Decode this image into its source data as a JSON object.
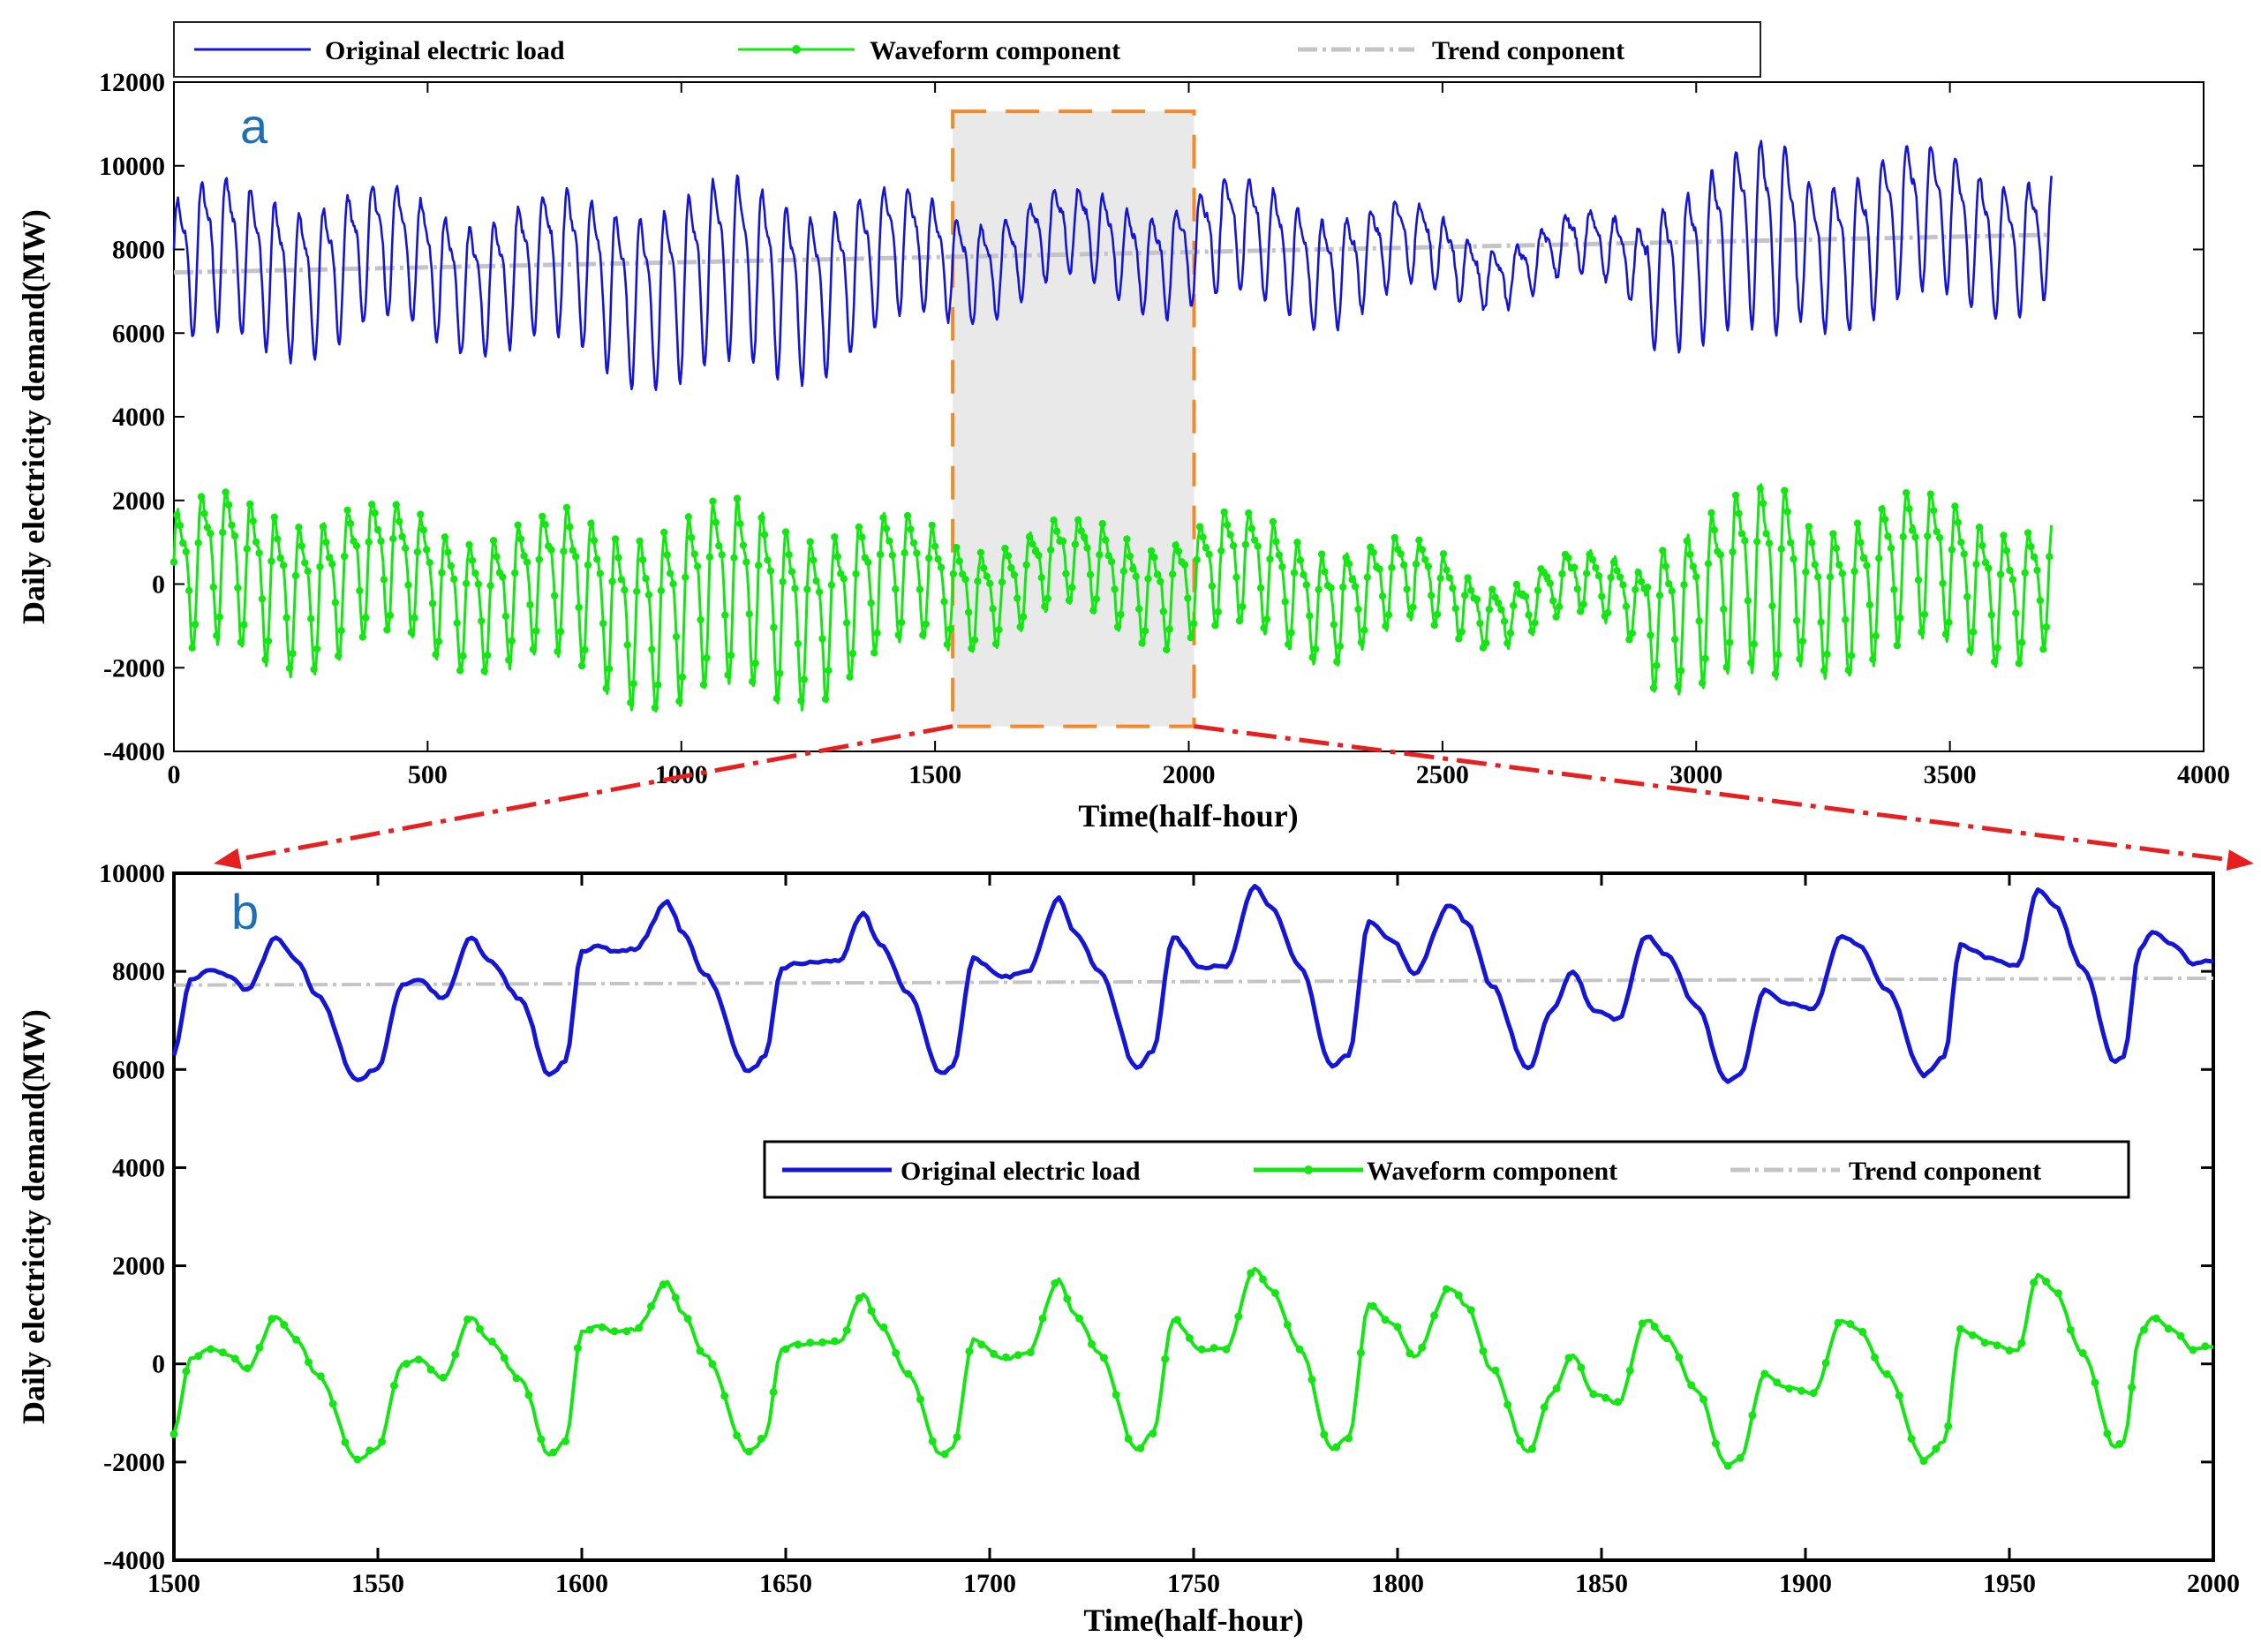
{
  "colors": {
    "original": "#1515d6",
    "waveform": "#14e614",
    "trend": "#c4c4c4",
    "panel_letter": "#1f6fb5",
    "highlight_fill": "#e6e6e6",
    "highlight_border": "#f08a2a",
    "zoom_arrow": "#e62020"
  },
  "chart_data": [
    {
      "id": "a",
      "type": "line",
      "panel_label": "a",
      "xlabel": "Time(half-hour)",
      "ylabel": "Daily electricity demand(MW)",
      "xlim": [
        0,
        4000
      ],
      "ylim": [
        -4000,
        12000
      ],
      "xticks": [
        0,
        500,
        1000,
        1500,
        2000,
        2500,
        3000,
        3500,
        4000
      ],
      "yticks": [
        -4000,
        -2000,
        0,
        2000,
        4000,
        6000,
        8000,
        10000,
        12000
      ],
      "x_end": 3700,
      "series_model": {
        "description": "approximate daily-cycle load around a slowly rising trend",
        "period_halfhours": 48,
        "trend": {
          "name": "Trend conponent",
          "start": 7450,
          "end": 8350
        },
        "original": {
          "name": "Original electric load"
        },
        "waveform": {
          "name": "Waveform component",
          "markers": true
        }
      },
      "highlight_window": {
        "x_start": 1500,
        "x_end": 2000,
        "y_bottom": -3400,
        "y_top": 11300
      },
      "legend": {
        "position": "top-outside",
        "entries": [
          "Original electric load",
          "Waveform component",
          "Trend conponent"
        ]
      }
    },
    {
      "id": "b",
      "type": "line",
      "panel_label": "b",
      "xlabel": "Time(half-hour)",
      "ylabel": "Daily electricity demand(MW)",
      "xlim": [
        1500,
        2000
      ],
      "ylim": [
        -4000,
        10000
      ],
      "xticks": [
        1500,
        1550,
        1600,
        1650,
        1700,
        1750,
        1800,
        1850,
        1900,
        1950,
        2000
      ],
      "yticks": [
        -4000,
        -2000,
        0,
        2000,
        4000,
        6000,
        8000,
        10000
      ],
      "trend": {
        "name": "Trend conponent",
        "x": [
          1500,
          2000
        ],
        "y": [
          7720,
          7860
        ]
      },
      "waveform_keypoints": {
        "name": "Waveform component",
        "x": [
          1500,
          1504,
          1509,
          1513,
          1518,
          1525,
          1530,
          1535,
          1545,
          1550,
          1556,
          1560,
          1566,
          1573,
          1577,
          1585,
          1592,
          1596,
          1600,
          1604,
          1608,
          1613,
          1621,
          1625,
          1630,
          1641,
          1645,
          1649,
          1653,
          1663,
          1669,
          1673,
          1680,
          1688,
          1691,
          1696,
          1703,
          1709,
          1717,
          1721,
          1727,
          1736,
          1740,
          1745,
          1752,
          1758,
          1765,
          1769,
          1776,
          1784,
          1788,
          1793,
          1799,
          1804,
          1813,
          1817,
          1823,
          1832,
          1838,
          1843,
          1848,
          1854,
          1861,
          1866,
          1873,
          1881,
          1884,
          1890,
          1896,
          1902,
          1909,
          1913,
          1920,
          1929,
          1934,
          1938,
          1946,
          1952,
          1957,
          1961,
          1968,
          1976,
          1978,
          1982,
          1985,
          1990,
          1995,
          2000
        ],
        "values": [
          -1400,
          100,
          300,
          200,
          -100,
          950,
          500,
          -200,
          -1950,
          -1700,
          0,
          100,
          -300,
          950,
          500,
          -300,
          -1850,
          -1600,
          650,
          800,
          650,
          700,
          1650,
          1000,
          200,
          -1800,
          -1500,
          300,
          400,
          450,
          1400,
          800,
          -200,
          -1850,
          -1700,
          500,
          100,
          200,
          1700,
          1000,
          200,
          -1750,
          -1400,
          900,
          300,
          300,
          1950,
          1500,
          300,
          -1750,
          -1500,
          1200,
          800,
          150,
          1550,
          1200,
          -100,
          -1800,
          -600,
          200,
          -600,
          -800,
          900,
          500,
          -500,
          -2100,
          -1900,
          -200,
          -500,
          -600,
          900,
          700,
          -200,
          -1950,
          -1600,
          700,
          400,
          250,
          1800,
          1500,
          200,
          -1700,
          -1600,
          600,
          950,
          700,
          300,
          350
        ]
      },
      "original_rule": "original = trend + waveform",
      "legend": {
        "position": "center-right",
        "entries": [
          "Original electric load",
          "Waveform component",
          "Trend conponent"
        ]
      }
    }
  ]
}
